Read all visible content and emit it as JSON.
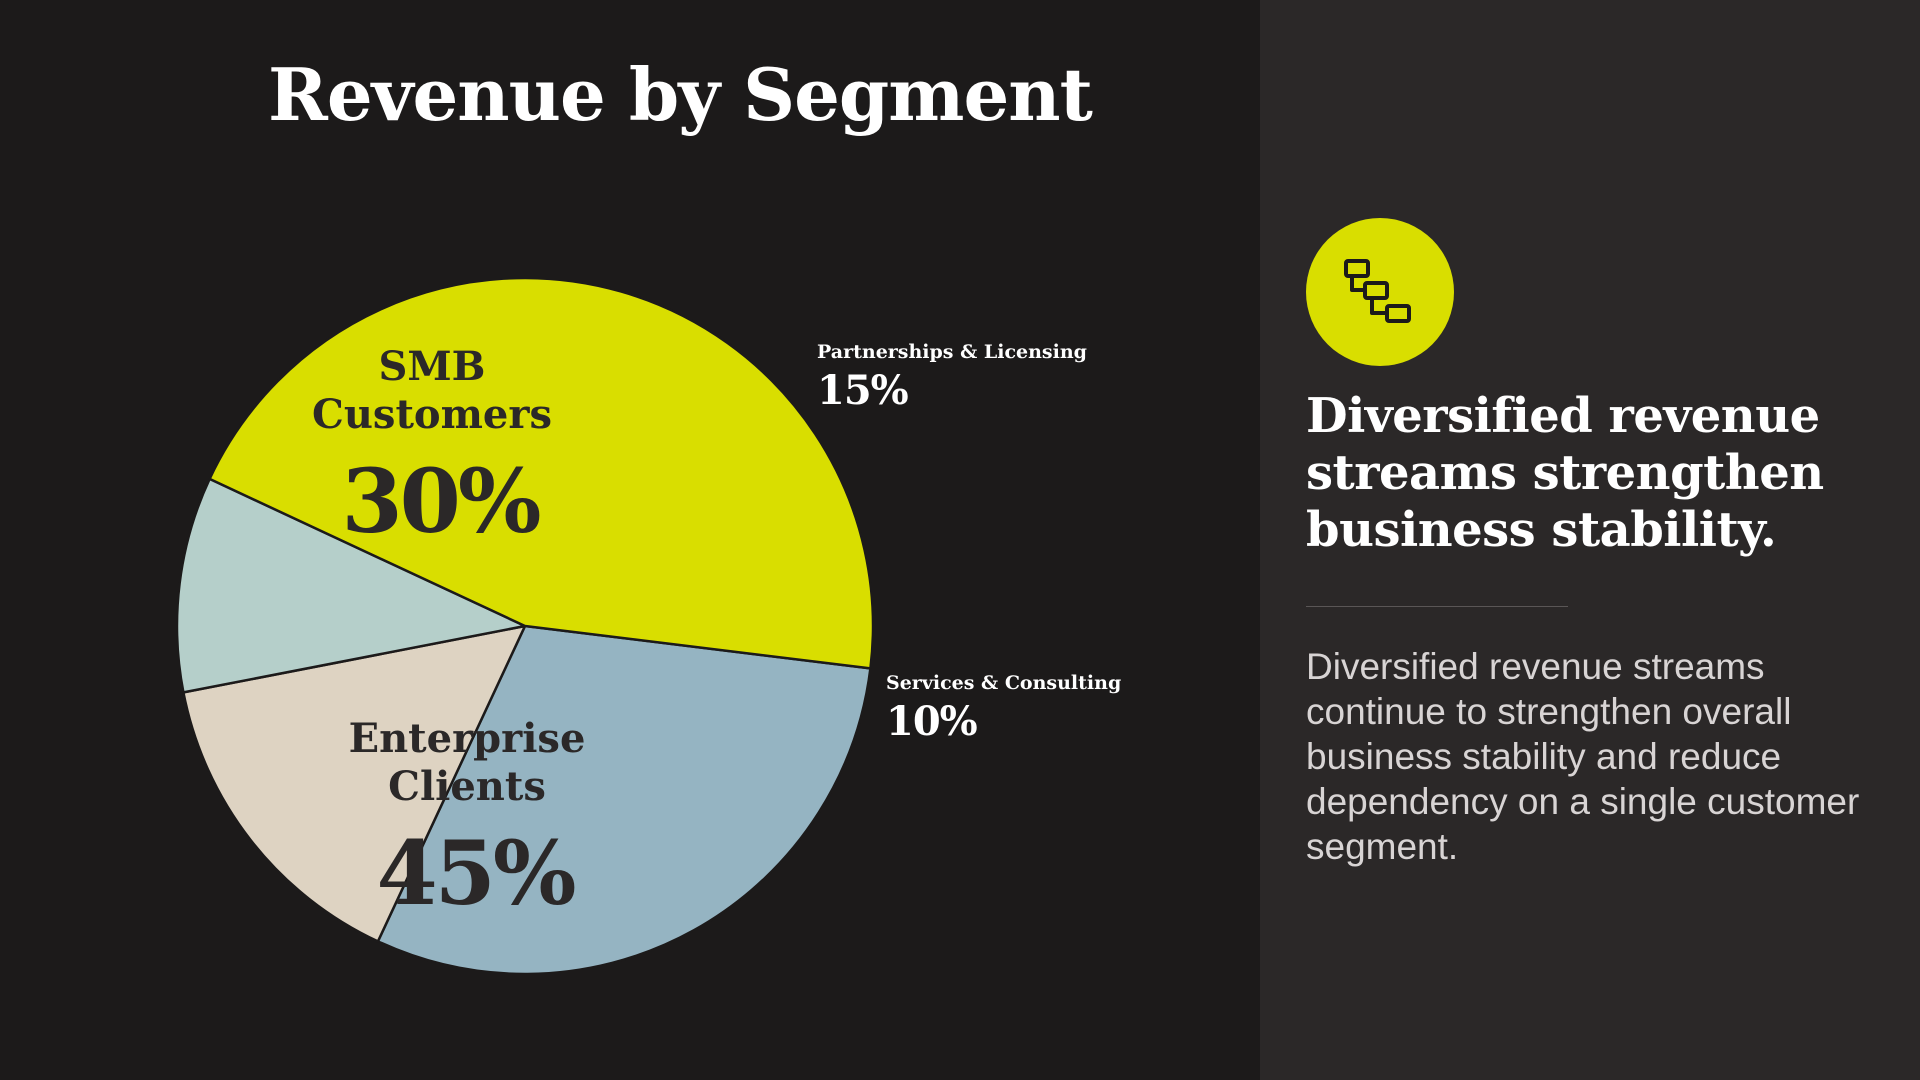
{
  "slide": {
    "title": "Revenue by Segment"
  },
  "chart_data": {
    "type": "pie",
    "title": "Revenue by Segment",
    "categories": [
      "SMB Customers",
      "Partnerships & Licensing",
      "Services & Consulting",
      "Enterprise Clients"
    ],
    "values": [
      30,
      15,
      10,
      45
    ],
    "unit": "%",
    "value_labels": [
      "30%",
      "15%",
      "10%",
      "45%"
    ],
    "label_lines": [
      [
        "SMB",
        "Customers"
      ],
      [
        "Partnerships & Licensing"
      ],
      [
        "Services & Consulting"
      ],
      [
        "Enterprise",
        "Clients"
      ]
    ],
    "label_position": [
      "inside",
      "outside",
      "outside",
      "inside"
    ],
    "colors": [
      "#95b4c2",
      "#ded3c2",
      "#b5cfca",
      "#d9de00"
    ],
    "legend": "none"
  },
  "sidebar": {
    "icon": "hierarchy-icon",
    "icon_color": "#d9de00",
    "headline": "Diversified revenue streams strengthen business stability.",
    "body": "Diversified revenue streams continue to strengthen overall business stability and reduce dependency on a single customer segment."
  }
}
